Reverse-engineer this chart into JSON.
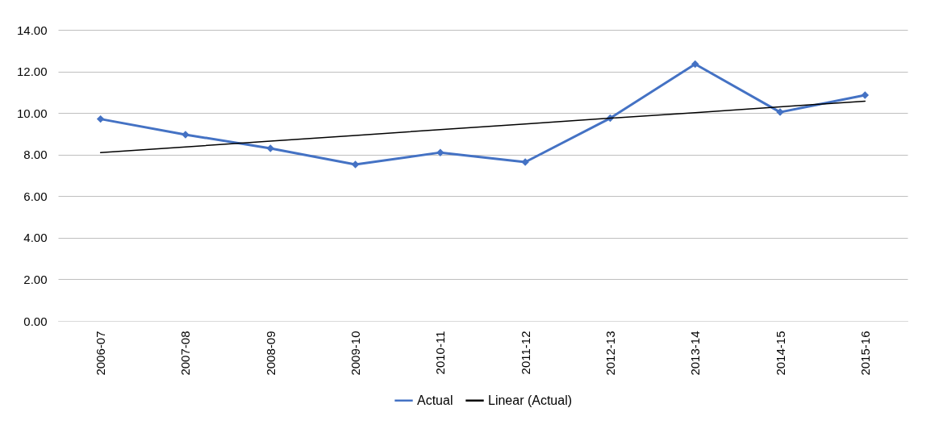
{
  "chart_data": {
    "type": "line",
    "categories": [
      "2006-07",
      "2007-08",
      "2008-09",
      "2009-10",
      "2010-11",
      "2011-12",
      "2012-13",
      "2013-14",
      "2014-15",
      "2015-16"
    ],
    "series": [
      {
        "name": "Actual",
        "color": "#4472c4",
        "marker": "diamond",
        "values": [
          9.71,
          8.96,
          8.3,
          7.52,
          8.1,
          7.64,
          9.75,
          12.35,
          10.04,
          10.86
        ]
      },
      {
        "name": "Linear (Actual)",
        "color": "#000000",
        "type": "line",
        "marker": "none",
        "values": [
          8.1,
          8.37,
          8.65,
          8.92,
          9.2,
          9.47,
          9.75,
          10.02,
          10.3,
          10.57
        ]
      }
    ],
    "ylim": [
      0,
      14
    ],
    "yticks": [
      {
        "value": 0,
        "label": "0.00"
      },
      {
        "value": 2,
        "label": "2.00"
      },
      {
        "value": 4,
        "label": "4.00"
      },
      {
        "value": 6,
        "label": "6.00"
      },
      {
        "value": 8,
        "label": "8.00"
      },
      {
        "value": 10,
        "label": "10.00"
      },
      {
        "value": 12,
        "label": "12.00"
      },
      {
        "value": 14,
        "label": "14.00"
      }
    ],
    "grid": "y",
    "legend": "bottom"
  }
}
